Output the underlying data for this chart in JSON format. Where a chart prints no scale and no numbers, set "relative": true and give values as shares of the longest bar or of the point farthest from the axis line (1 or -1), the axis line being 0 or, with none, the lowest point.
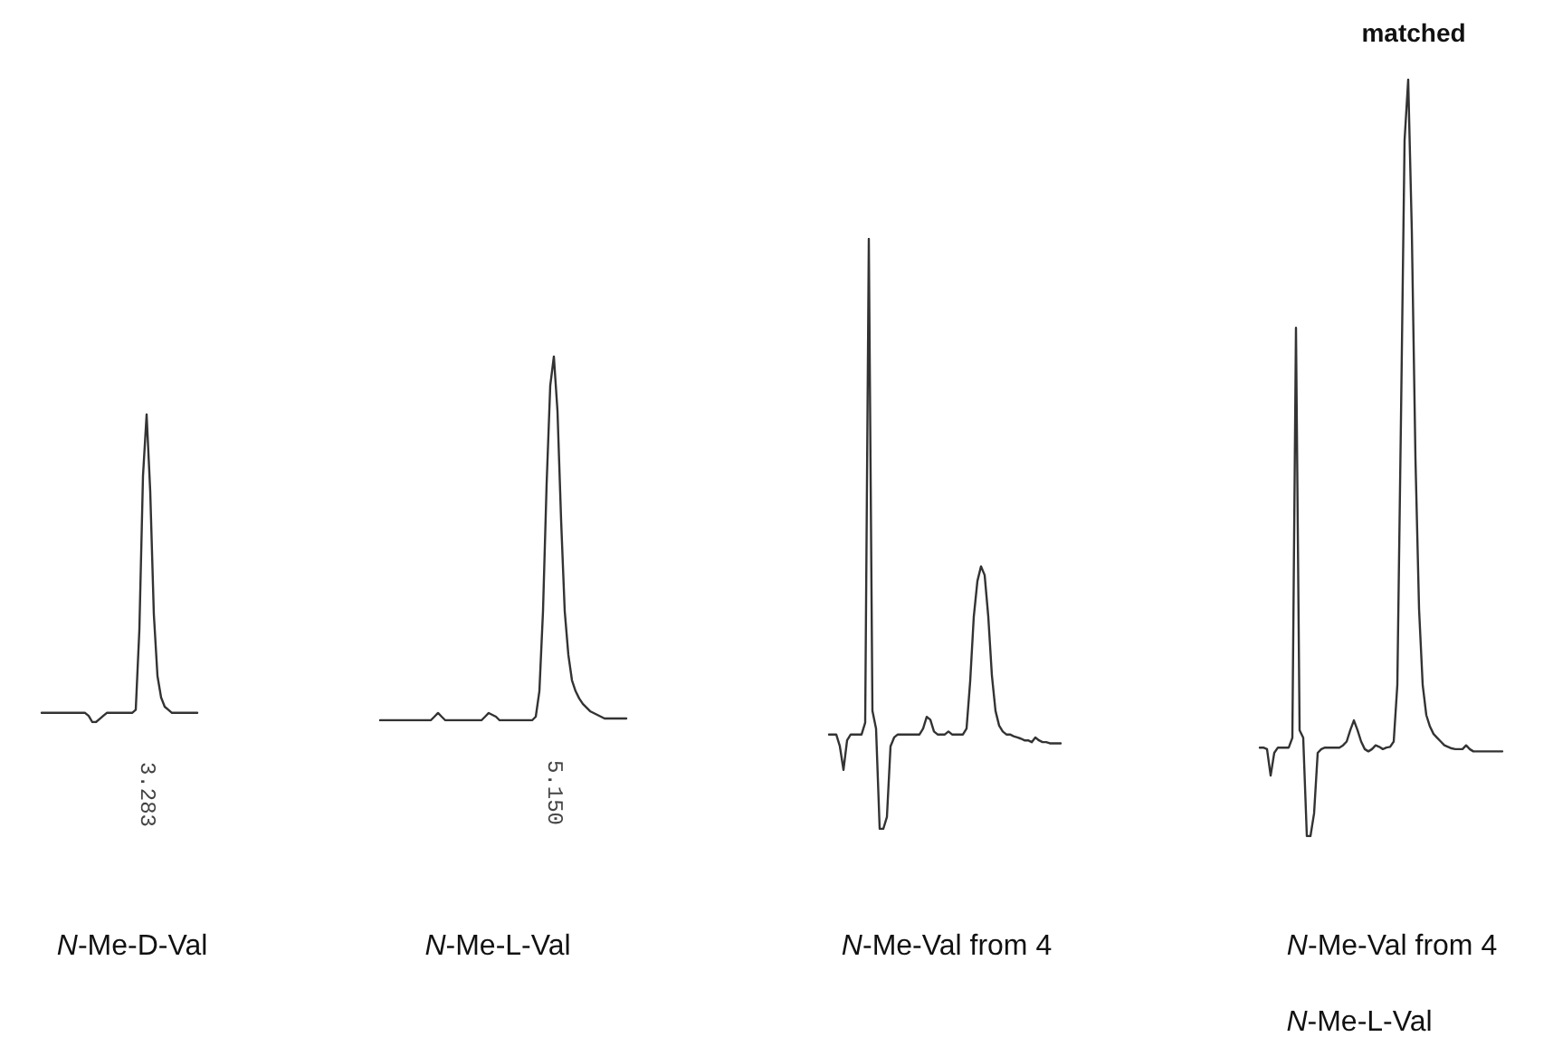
{
  "chart_data": [
    {
      "type": "line",
      "relative": true,
      "marker": "none",
      "line_style": "solid",
      "xlabel": "N-Me-D-Val",
      "annotations": [
        "3.283"
      ],
      "categories": [
        null,
        null,
        null,
        null,
        null,
        null,
        null,
        null,
        null,
        null,
        null,
        null,
        null,
        null,
        null,
        null,
        null,
        null,
        null,
        null,
        null,
        null,
        null,
        null,
        null,
        null,
        null,
        null,
        null,
        null,
        null,
        null,
        null,
        null,
        null,
        null,
        null,
        null,
        null,
        null,
        null,
        null,
        null,
        null
      ],
      "series": [
        {
          "color": "#333333",
          "values": [
            0.03,
            0.03,
            0.03,
            0.03,
            0.03,
            0.03,
            0.03,
            0.03,
            0.03,
            0.03,
            0.03,
            0.03,
            0.03,
            0.02,
            0.0,
            0.0,
            0.01,
            0.02,
            0.03,
            0.03,
            0.03,
            0.03,
            0.03,
            0.03,
            0.03,
            0.03,
            0.04,
            0.3,
            0.8,
            1.0,
            0.75,
            0.35,
            0.15,
            0.08,
            0.05,
            0.04,
            0.03,
            0.03,
            0.03,
            0.03,
            0.03,
            0.03,
            0.03,
            0.03
          ]
        }
      ]
    },
    {
      "type": "line",
      "relative": true,
      "marker": "none",
      "line_style": "solid",
      "xlabel": "N-Me-L-Val",
      "annotations": [
        "5.150"
      ],
      "categories": [
        null,
        null,
        null,
        null,
        null,
        null,
        null,
        null,
        null,
        null,
        null,
        null,
        null,
        null,
        null,
        null,
        null,
        null,
        null,
        null,
        null,
        null,
        null,
        null,
        null,
        null,
        null,
        null,
        null,
        null,
        null,
        null,
        null,
        null,
        null,
        null,
        null,
        null,
        null,
        null,
        null,
        null,
        null,
        null,
        null,
        null,
        null,
        null,
        null,
        null,
        null,
        null,
        null,
        null,
        null,
        null,
        null,
        null,
        null,
        null,
        null,
        null,
        null,
        null,
        null,
        null,
        null,
        null,
        null
      ],
      "series": [
        {
          "color": "#333333",
          "values": [
            0,
            0,
            0,
            0,
            0,
            0,
            0,
            0,
            0,
            0,
            0,
            0,
            0,
            0,
            0,
            0.01,
            0.02,
            0.01,
            0,
            0,
            0,
            0,
            0,
            0,
            0,
            0,
            0,
            0,
            0,
            0.01,
            0.02,
            0.015,
            0.01,
            0,
            0,
            0,
            0,
            0,
            0,
            0,
            0,
            0,
            0,
            0.01,
            0.08,
            0.3,
            0.65,
            0.92,
            1.0,
            0.85,
            0.55,
            0.3,
            0.18,
            0.11,
            0.08,
            0.06,
            0.045,
            0.035,
            0.025,
            0.02,
            0.015,
            0.01,
            0.005,
            0.005,
            0.005,
            0.005,
            0.005,
            0.005,
            0.005
          ]
        }
      ]
    },
    {
      "type": "line",
      "relative": true,
      "marker": "none",
      "line_style": "solid",
      "xlabel": "N-Me-Val from 4",
      "categories": [
        null,
        null,
        null,
        null,
        null,
        null,
        null,
        null,
        null,
        null,
        null,
        null,
        null,
        null,
        null,
        null,
        null,
        null,
        null,
        null,
        null,
        null,
        null,
        null,
        null,
        null,
        null,
        null,
        null,
        null,
        null,
        null,
        null,
        null,
        null,
        null,
        null,
        null,
        null,
        null,
        null,
        null,
        null,
        null,
        null,
        null,
        null,
        null,
        null,
        null,
        null,
        null,
        null,
        null,
        null,
        null,
        null,
        null,
        null,
        null,
        null,
        null,
        null,
        null,
        null
      ],
      "series": [
        {
          "color": "#333333",
          "values": [
            0.16,
            0.16,
            0.16,
            0.14,
            0.1,
            0.15,
            0.16,
            0.16,
            0.16,
            0.16,
            0.18,
            1.0,
            0.2,
            0.17,
            0.0,
            0.0,
            0.02,
            0.14,
            0.155,
            0.16,
            0.16,
            0.16,
            0.16,
            0.16,
            0.16,
            0.16,
            0.17,
            0.19,
            0.185,
            0.165,
            0.16,
            0.16,
            0.16,
            0.165,
            0.16,
            0.16,
            0.16,
            0.16,
            0.17,
            0.25,
            0.36,
            0.42,
            0.445,
            0.43,
            0.36,
            0.26,
            0.2,
            0.175,
            0.165,
            0.16,
            0.16,
            0.157,
            0.155,
            0.153,
            0.15,
            0.15,
            0.147,
            0.155,
            0.15,
            0.147,
            0.147,
            0.145,
            0.145,
            0.145,
            0.145
          ]
        }
      ]
    },
    {
      "type": "line",
      "relative": true,
      "marker": "none",
      "line_style": "solid",
      "title": "matched",
      "xlabel": "N-Me-Val from 4",
      "subtitle": "N-Me-L-Val",
      "categories": [
        null,
        null,
        null,
        null,
        null,
        null,
        null,
        null,
        null,
        null,
        null,
        null,
        null,
        null,
        null,
        null,
        null,
        null,
        null,
        null,
        null,
        null,
        null,
        null,
        null,
        null,
        null,
        null,
        null,
        null,
        null,
        null,
        null,
        null,
        null,
        null,
        null,
        null,
        null,
        null,
        null,
        null,
        null,
        null,
        null,
        null,
        null,
        null,
        null,
        null,
        null,
        null,
        null,
        null,
        null,
        null,
        null,
        null,
        null,
        null,
        null,
        null,
        null,
        null,
        null,
        null,
        null,
        null
      ],
      "series": [
        {
          "color": "#333333",
          "values": [
            0.117,
            0.117,
            0.115,
            0.08,
            0.11,
            0.117,
            0.117,
            0.117,
            0.117,
            0.13,
            0.672,
            0.14,
            0.13,
            0.0,
            0.0,
            0.03,
            0.11,
            0.115,
            0.117,
            0.117,
            0.117,
            0.117,
            0.117,
            0.12,
            0.125,
            0.14,
            0.153,
            0.14,
            0.125,
            0.115,
            0.112,
            0.115,
            0.12,
            0.118,
            0.115,
            0.117,
            0.118,
            0.125,
            0.2,
            0.55,
            0.92,
            1.0,
            0.8,
            0.5,
            0.3,
            0.2,
            0.16,
            0.145,
            0.135,
            0.13,
            0.125,
            0.12,
            0.118,
            0.116,
            0.115,
            0.115,
            0.115,
            0.12,
            0.115,
            0.112,
            0.112,
            0.112,
            0.112,
            0.112,
            0.112,
            0.112,
            0.112,
            0.112
          ]
        }
      ]
    }
  ]
}
